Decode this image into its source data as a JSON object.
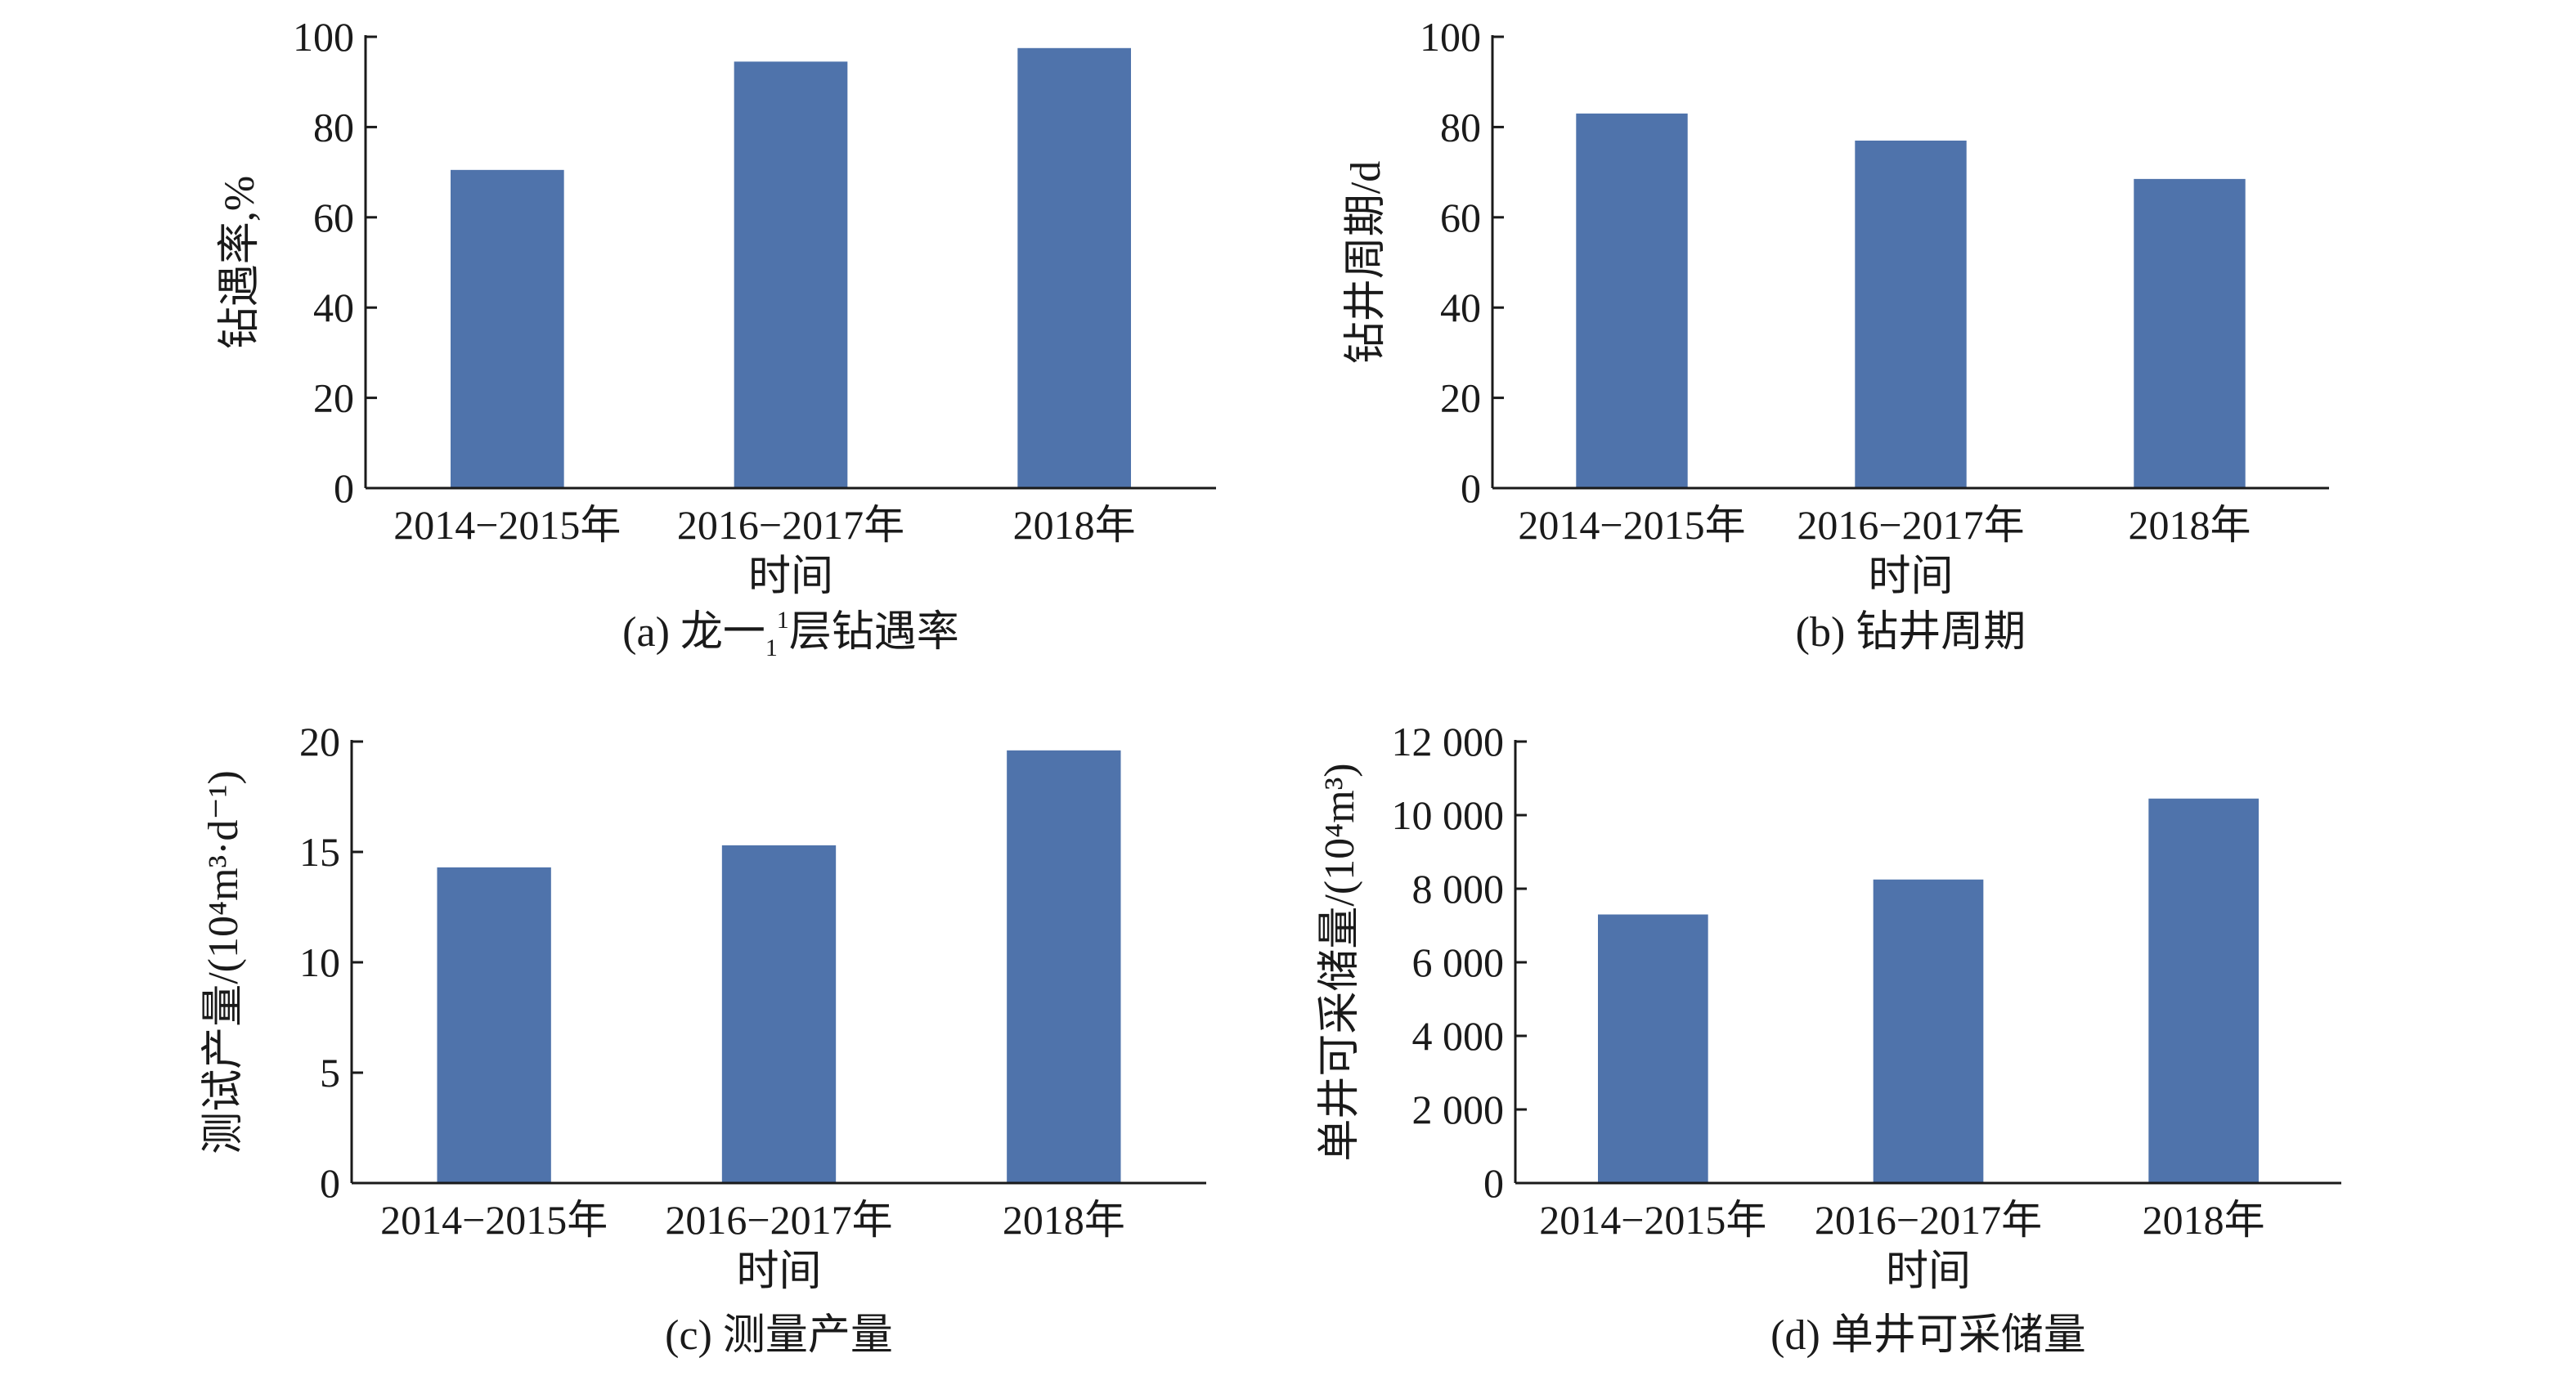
{
  "figure": {
    "panels": [
      {
        "id": "a",
        "caption": "(a) 龙一",
        "caption_sub": "1",
        "caption_sup": "1",
        "caption_tail": "层钻遇率"
      },
      {
        "id": "b",
        "caption": "(b) 钻井周期"
      },
      {
        "id": "c",
        "caption": "(c) 测量产量"
      },
      {
        "id": "d",
        "caption": "(d) 单井可采储量"
      }
    ]
  },
  "chart_data": [
    {
      "type": "bar",
      "categories": [
        "2014−2015年",
        "2016−2017年",
        "2018年"
      ],
      "values": [
        70.5,
        94.5,
        97.5
      ],
      "xlabel": "时间",
      "ylabel": "钻遇率,%",
      "ylim": [
        0,
        100
      ],
      "yticks": [
        0,
        20,
        40,
        60,
        80,
        100
      ],
      "ytick_labels": [
        "0",
        "20",
        "40",
        "60",
        "80",
        "100"
      ],
      "bar_color": "#4f73ab",
      "grid": false
    },
    {
      "type": "bar",
      "categories": [
        "2014−2015年",
        "2016−2017年",
        "2018年"
      ],
      "values": [
        83,
        77,
        68.5
      ],
      "xlabel": "时间",
      "ylabel": "钻井周期/d",
      "ylim": [
        0,
        100
      ],
      "yticks": [
        0,
        20,
        40,
        60,
        80,
        100
      ],
      "ytick_labels": [
        "0",
        "20",
        "40",
        "60",
        "80",
        "100"
      ],
      "bar_color": "#4f73ab",
      "grid": false
    },
    {
      "type": "bar",
      "categories": [
        "2014−2015年",
        "2016−2017年",
        "2018年"
      ],
      "values": [
        14.3,
        15.3,
        19.6
      ],
      "xlabel": "",
      "ylabel": "测试产量/(10⁴m³·d⁻¹)",
      "ylim": [
        0,
        20
      ],
      "yticks": [
        0,
        5,
        10,
        15,
        20
      ],
      "ytick_labels": [
        "0",
        "5",
        "10",
        "15",
        "20"
      ],
      "bar_color": "#4f73ab",
      "grid": false
    },
    {
      "type": "bar",
      "categories": [
        "2014−2015年",
        "2016−2017年",
        "2018年"
      ],
      "values": [
        7300,
        8250,
        10450
      ],
      "xlabel": "时间",
      "ylabel": "单井可采储量/(10⁴m³)",
      "ylim": [
        0,
        12000
      ],
      "yticks": [
        0,
        2000,
        4000,
        6000,
        8000,
        10000,
        12000
      ],
      "ytick_labels": [
        "0",
        "2 000",
        "4 000",
        "6 000",
        "8 000",
        "10 000",
        "12 000"
      ],
      "bar_color": "#4f73ab",
      "grid": false
    }
  ],
  "panel_c_xlabel_printed": "时间"
}
